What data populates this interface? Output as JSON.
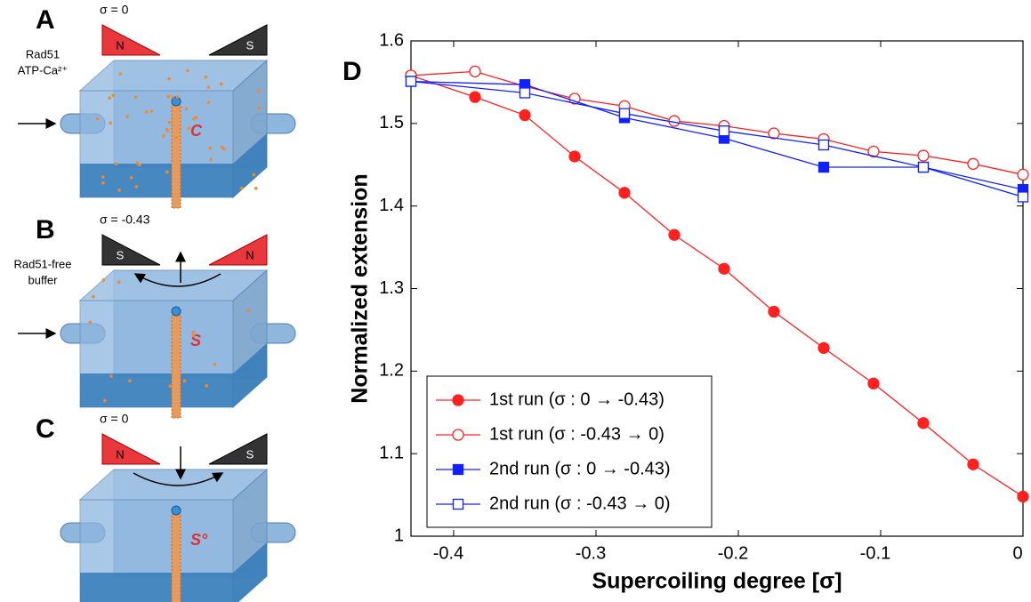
{
  "panel_a": {
    "label": "A",
    "sigma": "σ = 0",
    "magnets": [
      "N",
      "S"
    ],
    "reagent": [
      "Rad51",
      "ATP-Ca²⁺"
    ],
    "state": "C"
  },
  "panel_b": {
    "label": "B",
    "sigma": "σ = -0.43",
    "magnets": [
      "S",
      "N"
    ],
    "reagent": [
      "Rad51-free",
      "buffer"
    ],
    "state": "S"
  },
  "panel_c": {
    "label": "C",
    "sigma": "σ = 0",
    "magnets": [
      "N",
      "S"
    ],
    "state": "S°"
  },
  "chart_data": {
    "type": "line",
    "panel_label": "D",
    "x_label": "Supercoiling degree [σ]",
    "y_label": "Normalized extension",
    "xlim": [
      -0.43,
      0
    ],
    "xticks": [
      -0.4,
      -0.3,
      -0.2,
      -0.1,
      0
    ],
    "ylim": [
      1,
      1.6
    ],
    "yticks": [
      1,
      1.1,
      1.2,
      1.3,
      1.4,
      1.5,
      1.6
    ],
    "legend": "lower-left",
    "series": [
      {
        "name": "1st run (σ : 0 → -0.43)",
        "color": "#ff2020",
        "marker": "circle",
        "filled": true,
        "x": [
          -0.43,
          -0.385,
          -0.35,
          -0.315,
          -0.28,
          -0.245,
          -0.21,
          -0.175,
          -0.14,
          -0.105,
          -0.07,
          -0.035,
          0
        ],
        "values": [
          1.558,
          1.532,
          1.51,
          1.46,
          1.416,
          1.365,
          1.324,
          1.272,
          1.228,
          1.185,
          1.137,
          1.087,
          1.048
        ]
      },
      {
        "name": "1st run (σ : -0.43 → 0)",
        "color": "#ff2020",
        "marker": "circle",
        "filled": false,
        "x": [
          -0.43,
          -0.385,
          -0.35,
          -0.315,
          -0.28,
          -0.245,
          -0.21,
          -0.175,
          -0.14,
          -0.105,
          -0.07,
          -0.035,
          0
        ],
        "values": [
          1.558,
          1.563,
          1.545,
          1.53,
          1.521,
          1.503,
          1.497,
          1.488,
          1.481,
          1.466,
          1.461,
          1.451,
          1.438
        ]
      },
      {
        "name": "2nd run (σ : 0 → -0.43)",
        "color": "#1020ff",
        "marker": "square",
        "filled": true,
        "x": [
          -0.43,
          -0.35,
          -0.28,
          -0.21,
          -0.14,
          -0.07,
          0
        ],
        "values": [
          1.551,
          1.547,
          1.507,
          1.482,
          1.447,
          1.447,
          1.42
        ]
      },
      {
        "name": "2nd run (σ : -0.43 → 0)",
        "color": "#1020ff",
        "marker": "square",
        "filled": false,
        "x": [
          -0.43,
          -0.35,
          -0.28,
          -0.21,
          -0.14,
          -0.07,
          0
        ],
        "values": [
          1.551,
          1.537,
          1.512,
          1.491,
          1.474,
          1.447,
          1.411
        ]
      }
    ]
  }
}
